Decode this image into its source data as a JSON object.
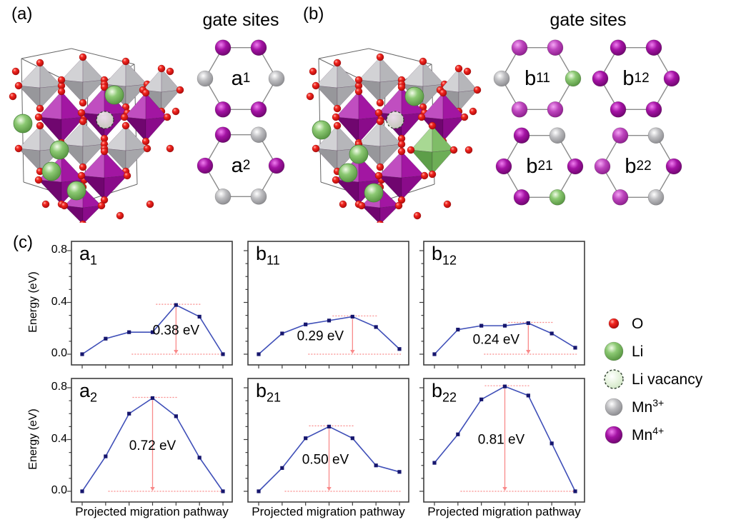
{
  "panels": {
    "a_label": "(a)",
    "b_label": "(b)",
    "c_label": "(c)"
  },
  "gate_sites": {
    "a": {
      "title": "gate sites",
      "hexagons": [
        {
          "id": "a1",
          "label": "a",
          "sub": "1",
          "vertices": [
            "mn4",
            "mn4",
            "mn3",
            "mn4",
            "mn4",
            "mn3"
          ]
        },
        {
          "id": "a2",
          "label": "a",
          "sub": "2",
          "vertices": [
            "mn4",
            "mn3",
            "mn4",
            "mn3",
            "mn3",
            "mn4"
          ]
        }
      ]
    },
    "b": {
      "title": "gate sites",
      "hexagons": [
        {
          "id": "b11",
          "label": "b",
          "sub": "11",
          "vertices": [
            "mn4_light",
            "mn4_light",
            "li",
            "mn4_light",
            "mn4_light",
            "mn3"
          ]
        },
        {
          "id": "b12",
          "label": "b",
          "sub": "12",
          "vertices": [
            "mn4",
            "mn4",
            "mn4",
            "mn4",
            "mn4",
            "mn4"
          ]
        },
        {
          "id": "b21",
          "label": "b",
          "sub": "21",
          "vertices": [
            "mn4",
            "mn3",
            "mn4",
            "li",
            "mn4",
            "mn4"
          ]
        },
        {
          "id": "b22",
          "label": "b",
          "sub": "22",
          "vertices": [
            "mn4_light",
            "mn3",
            "mn4",
            "mn3",
            "mn4_light",
            "mn4_light"
          ]
        }
      ]
    }
  },
  "legend": {
    "items": [
      {
        "label": "O",
        "sup": "",
        "species": "o"
      },
      {
        "label": "Li",
        "sup": "",
        "species": "li"
      },
      {
        "label": "Li vacancy",
        "sup": "",
        "species": "li_vacancy"
      },
      {
        "label": "Mn",
        "sup": "3+",
        "species": "mn3"
      },
      {
        "label": "Mn",
        "sup": "4+",
        "species": "mn4"
      }
    ]
  },
  "species_colors": {
    "o": "#e31219",
    "li": "#7fbf69",
    "li_vacancy": "#e6f2df",
    "mn3": "#b6b6b8",
    "mn4": "#990d99",
    "mn4_light": "#bb44bb"
  },
  "colors": {
    "line": "#3f4fb8",
    "marker": "#16166e",
    "annotation": "#f98a8a",
    "frame": "#3d3d3d",
    "hex_edge": "#8a8a8a",
    "cube_edge": "#666666"
  },
  "axes": {
    "ylabel": "Energy (eV)",
    "xlabel": "Projected migration pathway",
    "ytick_labels": [
      "0.0",
      "0.4",
      "0.8"
    ],
    "yticks": [
      0.0,
      0.4,
      0.8
    ],
    "minor_tick_step": 0.1,
    "ylim": [
      0,
      0.88
    ],
    "n_points": 7
  },
  "chart_data": [
    {
      "type": "line",
      "id": "a1",
      "label": "a",
      "sub": "1",
      "x": [
        0,
        1,
        2,
        3,
        4,
        5,
        6
      ],
      "values": [
        0.0,
        0.12,
        0.17,
        0.17,
        0.38,
        0.29,
        0.0
      ],
      "barrier_ev": 0.38,
      "barrier_label": "0.38 eV",
      "peak_index": 4,
      "label_dx": 0
    },
    {
      "type": "line",
      "id": "b11",
      "label": "b",
      "sub": "11",
      "x": [
        0,
        1,
        2,
        3,
        4,
        5,
        6
      ],
      "values": [
        0.0,
        0.16,
        0.23,
        0.26,
        0.29,
        0.21,
        0.04
      ],
      "barrier_ev": 0.29,
      "barrier_label": "0.29 eV",
      "peak_index": 4,
      "label_dx": -45
    },
    {
      "type": "line",
      "id": "b12",
      "label": "b",
      "sub": "12",
      "x": [
        0,
        1,
        2,
        3,
        4,
        5,
        6
      ],
      "values": [
        0.0,
        0.19,
        0.22,
        0.22,
        0.24,
        0.16,
        0.05
      ],
      "barrier_ev": 0.24,
      "barrier_label": "0.24 eV",
      "peak_index": 4,
      "label_dx": -45
    },
    {
      "type": "line",
      "id": "a2",
      "label": "a",
      "sub": "2",
      "x": [
        0,
        1,
        2,
        3,
        4,
        5,
        6
      ],
      "values": [
        0.0,
        0.27,
        0.6,
        0.72,
        0.58,
        0.26,
        0.0
      ],
      "barrier_ev": 0.72,
      "barrier_label": "0.72 eV",
      "peak_index": 3,
      "label_dx": 0
    },
    {
      "type": "line",
      "id": "b21",
      "label": "b",
      "sub": "21",
      "x": [
        0,
        1,
        2,
        3,
        4,
        5,
        6
      ],
      "values": [
        0.0,
        0.18,
        0.41,
        0.5,
        0.41,
        0.2,
        0.15
      ],
      "barrier_ev": 0.5,
      "barrier_label": "0.50 eV",
      "peak_index": 3,
      "label_dx": -5
    },
    {
      "type": "line",
      "id": "b22",
      "label": "b",
      "sub": "22",
      "x": [
        0,
        1,
        2,
        3,
        4,
        5,
        6
      ],
      "values": [
        0.22,
        0.44,
        0.71,
        0.81,
        0.74,
        0.37,
        0.0
      ],
      "barrier_ev": 0.81,
      "barrier_label": "0.81 eV",
      "peak_index": 3,
      "label_dx": -5
    }
  ]
}
